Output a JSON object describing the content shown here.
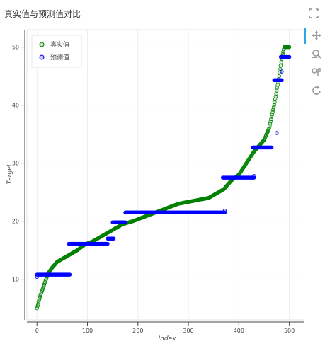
{
  "title": "真实值与预测值对比",
  "toolbar": {
    "items": [
      {
        "name": "pan-tool",
        "icon": "move-arrows-icon"
      },
      {
        "name": "box-zoom-tool",
        "icon": "magnifier-icon"
      },
      {
        "name": "save-tool",
        "icon": "save-icon"
      },
      {
        "name": "reset-tool",
        "icon": "refresh-icon"
      }
    ],
    "active_color": "#26aae1"
  },
  "chart_data": {
    "type": "scatter",
    "title": "真实值与预测值对比",
    "xlabel": "Index",
    "ylabel": "Target",
    "xlim": [
      -20,
      530
    ],
    "ylim": [
      3,
      53
    ],
    "xticks": [
      0,
      100,
      200,
      300,
      400,
      500
    ],
    "yticks": [
      10,
      20,
      30,
      40,
      50
    ],
    "grid": true,
    "legend_position": "top-left",
    "series": [
      {
        "name": "真实值",
        "color": "#008000",
        "description_points": [
          [
            0,
            5
          ],
          [
            3,
            6
          ],
          [
            6,
            7
          ],
          [
            10,
            8
          ],
          [
            14,
            9
          ],
          [
            18,
            10
          ],
          [
            22,
            11
          ],
          [
            30,
            12
          ],
          [
            40,
            13
          ],
          [
            60,
            14
          ],
          [
            80,
            15
          ],
          [
            95,
            16
          ],
          [
            110,
            16.5
          ],
          [
            130,
            17.5
          ],
          [
            150,
            18.5
          ],
          [
            170,
            19.5
          ],
          [
            190,
            20
          ],
          [
            220,
            21
          ],
          [
            250,
            22
          ],
          [
            280,
            23
          ],
          [
            310,
            23.5
          ],
          [
            340,
            24
          ],
          [
            360,
            25
          ],
          [
            370,
            25.5
          ],
          [
            385,
            27
          ],
          [
            400,
            28
          ],
          [
            415,
            30
          ],
          [
            430,
            32
          ],
          [
            450,
            34
          ],
          [
            460,
            36
          ],
          [
            470,
            40
          ],
          [
            480,
            45
          ],
          [
            485,
            48
          ],
          [
            490,
            50
          ],
          [
            500,
            50
          ]
        ]
      },
      {
        "name": "预测值",
        "color": "#0000ff",
        "segments": [
          {
            "x_start": 0,
            "x_end": 65,
            "y": 10.8
          },
          {
            "x_start": 63,
            "x_end": 140,
            "y": 16.1
          },
          {
            "x_start": 140,
            "x_end": 152,
            "y": 17
          },
          {
            "x_start": 150,
            "x_end": 175,
            "y": 19.8
          },
          {
            "x_start": 175,
            "x_end": 372,
            "y": 21.5
          },
          {
            "x_start": 368,
            "x_end": 430,
            "y": 27.5
          },
          {
            "x_start": 427,
            "x_end": 465,
            "y": 32.7
          },
          {
            "x_start": 470,
            "x_end": 485,
            "y": 44.3
          },
          {
            "x_start": 483,
            "x_end": 500,
            "y": 48.3
          }
        ],
        "outliers": [
          [
            0,
            10.4
          ],
          [
            372,
            21.8
          ],
          [
            430,
            27.8
          ],
          [
            475,
            35.2
          ],
          [
            485,
            45.8
          ]
        ]
      }
    ]
  }
}
